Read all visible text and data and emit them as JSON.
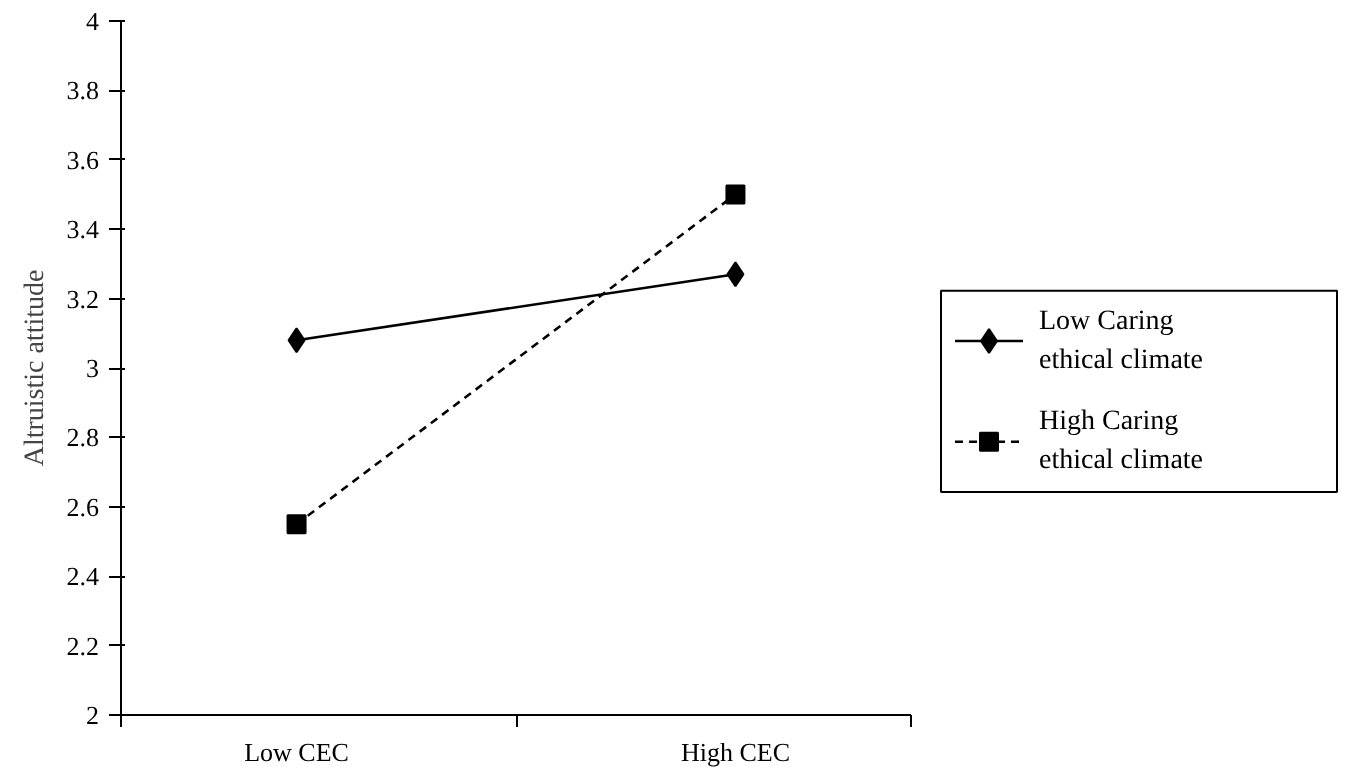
{
  "chart_data": {
    "type": "line",
    "ylabel": "Altruistic attitude",
    "categories": [
      "Low CEC",
      "High CEC"
    ],
    "series": [
      {
        "name": "Low Caring ethical climate",
        "color": "#000000",
        "values": [
          3.08,
          3.27
        ],
        "marker": "diamond",
        "line_style": "solid"
      },
      {
        "name": "High Caring ethical climate",
        "color": "#000000",
        "values": [
          2.55,
          3.5
        ],
        "marker": "square",
        "line_style": "dashed"
      }
    ],
    "ylim": [
      2,
      4
    ],
    "yticks": [
      2,
      2.2,
      2.4,
      2.6,
      2.8,
      3,
      3.2,
      3.4,
      3.6,
      3.8,
      4
    ],
    "grid": false,
    "legend": "right"
  }
}
